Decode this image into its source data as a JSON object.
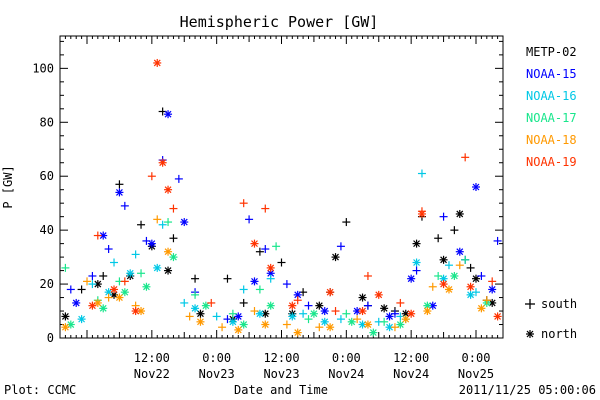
{
  "chart_data": {
    "type": "scatter",
    "title": "Hemispheric Power [GW]",
    "xlabel": "Date and Time",
    "ylabel": "P [GW]",
    "xlim": [
      "2011-11-21 19:00",
      "2011-11-25 05:00"
    ],
    "ylim": [
      0,
      112
    ],
    "yticks": [
      0,
      20,
      40,
      60,
      80,
      100
    ],
    "xticks": [
      {
        "time": "2011-11-22 12:00",
        "label1": "12:00",
        "label2": "Nov22"
      },
      {
        "time": "2011-11-23 00:00",
        "label1": "0:00",
        "label2": "Nov23"
      },
      {
        "time": "2011-11-23 12:00",
        "label1": "12:00",
        "label2": "Nov23"
      },
      {
        "time": "2011-11-24 00:00",
        "label1": "0:00",
        "label2": "Nov24"
      },
      {
        "time": "2011-11-24 12:00",
        "label1": "12:00",
        "label2": "Nov24"
      },
      {
        "time": "2011-11-25 00:00",
        "label1": "0:00",
        "label2": "Nov25"
      }
    ],
    "grid": false,
    "legend_position": "right",
    "marker_legend": [
      {
        "symbol": "+",
        "label": "south"
      },
      {
        "symbol": "*",
        "label": "north"
      }
    ],
    "series": [
      {
        "name": "METP-02",
        "color": "#000000",
        "south": [
          [
            "2011-11-21 23:00",
            18
          ],
          [
            "2011-11-22 03:00",
            23
          ],
          [
            "2011-11-22 06:00",
            57
          ],
          [
            "2011-11-22 10:00",
            42
          ],
          [
            "2011-11-22 14:00",
            84
          ],
          [
            "2011-11-22 16:00",
            37
          ],
          [
            "2011-11-22 20:00",
            22
          ],
          [
            "2011-11-23 02:00",
            22
          ],
          [
            "2011-11-23 05:00",
            13
          ],
          [
            "2011-11-23 08:00",
            32
          ],
          [
            "2011-11-23 12:00",
            28
          ],
          [
            "2011-11-23 16:00",
            17
          ],
          [
            "2011-11-23 21:00",
            17
          ],
          [
            "2011-11-24 00:00",
            43
          ],
          [
            "2011-11-24 04:00",
            12
          ],
          [
            "2011-11-24 09:00",
            10
          ],
          [
            "2011-11-24 14:00",
            45
          ],
          [
            "2011-11-24 17:00",
            37
          ],
          [
            "2011-11-24 20:00",
            40
          ],
          [
            "2011-11-24 23:00",
            26
          ],
          [
            "2011-11-25 02:00",
            14
          ]
        ],
        "north": [
          [
            "2011-11-21 20:00",
            8
          ],
          [
            "2011-11-22 02:00",
            20
          ],
          [
            "2011-11-22 05:00",
            16
          ],
          [
            "2011-11-22 08:00",
            23
          ],
          [
            "2011-11-22 12:00",
            34
          ],
          [
            "2011-11-22 15:00",
            25
          ],
          [
            "2011-11-22 21:00",
            9
          ],
          [
            "2011-11-23 03:00",
            7
          ],
          [
            "2011-11-23 09:00",
            9
          ],
          [
            "2011-11-23 14:00",
            9
          ],
          [
            "2011-11-23 19:00",
            12
          ],
          [
            "2011-11-23 22:00",
            30
          ],
          [
            "2011-11-24 03:00",
            15
          ],
          [
            "2011-11-24 07:00",
            11
          ],
          [
            "2011-11-24 11:00",
            9
          ],
          [
            "2011-11-24 13:00",
            35
          ],
          [
            "2011-11-24 18:00",
            29
          ],
          [
            "2011-11-24 21:00",
            46
          ],
          [
            "2011-11-25 00:00",
            22
          ],
          [
            "2011-11-25 03:00",
            13
          ]
        ]
      },
      {
        "name": "NOAA-15",
        "color": "#0000ff",
        "south": [
          [
            "2011-11-21 21:00",
            18
          ],
          [
            "2011-11-22 01:00",
            23
          ],
          [
            "2011-11-22 04:00",
            33
          ],
          [
            "2011-11-22 07:00",
            49
          ],
          [
            "2011-11-22 11:00",
            36
          ],
          [
            "2011-11-22 14:00",
            66
          ],
          [
            "2011-11-22 17:00",
            59
          ],
          [
            "2011-11-22 20:00",
            17
          ],
          [
            "2011-11-23 02:00",
            7
          ],
          [
            "2011-11-23 06:00",
            44
          ],
          [
            "2011-11-23 09:00",
            33
          ],
          [
            "2011-11-23 13:00",
            20
          ],
          [
            "2011-11-23 17:00",
            12
          ],
          [
            "2011-11-23 23:00",
            34
          ],
          [
            "2011-11-24 04:00",
            12
          ],
          [
            "2011-11-24 09:00",
            9
          ],
          [
            "2011-11-24 13:00",
            25
          ],
          [
            "2011-11-24 18:00",
            45
          ],
          [
            "2011-11-24 22:00",
            29
          ],
          [
            "2011-11-25 01:00",
            23
          ],
          [
            "2011-11-25 04:00",
            36
          ]
        ],
        "north": [
          [
            "2011-11-21 22:00",
            13
          ],
          [
            "2011-11-22 03:00",
            38
          ],
          [
            "2011-11-22 06:00",
            54
          ],
          [
            "2011-11-22 12:00",
            35
          ],
          [
            "2011-11-22 15:00",
            83
          ],
          [
            "2011-11-22 18:00",
            43
          ],
          [
            "2011-11-23 04:00",
            8
          ],
          [
            "2011-11-23 07:00",
            21
          ],
          [
            "2011-11-23 10:00",
            24
          ],
          [
            "2011-11-23 15:00",
            16
          ],
          [
            "2011-11-23 20:00",
            10
          ],
          [
            "2011-11-24 02:00",
            10
          ],
          [
            "2011-11-24 08:00",
            8
          ],
          [
            "2011-11-24 12:00",
            22
          ],
          [
            "2011-11-24 16:00",
            12
          ],
          [
            "2011-11-24 21:00",
            32
          ],
          [
            "2011-11-25 00:00",
            56
          ],
          [
            "2011-11-25 03:00",
            18
          ]
        ]
      },
      {
        "name": "NOAA-16",
        "color": "#00c8e6",
        "south": [
          [
            "2011-11-22 01:00",
            20
          ],
          [
            "2011-11-22 05:00",
            28
          ],
          [
            "2011-11-22 09:00",
            31
          ],
          [
            "2011-11-22 14:00",
            42
          ],
          [
            "2011-11-22 18:00",
            13
          ],
          [
            "2011-11-23 00:00",
            8
          ],
          [
            "2011-11-23 05:00",
            18
          ],
          [
            "2011-11-23 10:00",
            22
          ],
          [
            "2011-11-23 16:00",
            9
          ],
          [
            "2011-11-23 23:00",
            7
          ],
          [
            "2011-11-24 06:00",
            6
          ],
          [
            "2011-11-24 10:00",
            8
          ],
          [
            "2011-11-24 14:00",
            61
          ],
          [
            "2011-11-24 19:00",
            27
          ],
          [
            "2011-11-25 00:00",
            17
          ]
        ],
        "north": [
          [
            "2011-11-21 23:00",
            7
          ],
          [
            "2011-11-22 04:00",
            17
          ],
          [
            "2011-11-22 08:00",
            24
          ],
          [
            "2011-11-22 13:00",
            26
          ],
          [
            "2011-11-22 20:00",
            11
          ],
          [
            "2011-11-23 03:00",
            6
          ],
          [
            "2011-11-23 08:00",
            9
          ],
          [
            "2011-11-23 14:00",
            8
          ],
          [
            "2011-11-23 20:00",
            6
          ],
          [
            "2011-11-24 03:00",
            5
          ],
          [
            "2011-11-24 08:00",
            4
          ],
          [
            "2011-11-24 13:00",
            28
          ],
          [
            "2011-11-24 18:00",
            22
          ],
          [
            "2011-11-24 23:00",
            16
          ]
        ]
      },
      {
        "name": "NOAA-17",
        "color": "#19e68c",
        "south": [
          [
            "2011-11-21 20:00",
            26
          ],
          [
            "2011-11-22 02:00",
            14
          ],
          [
            "2011-11-22 06:00",
            21
          ],
          [
            "2011-11-22 10:00",
            24
          ],
          [
            "2011-11-22 15:00",
            43
          ],
          [
            "2011-11-22 20:00",
            16
          ],
          [
            "2011-11-23 03:00",
            9
          ],
          [
            "2011-11-23 08:00",
            18
          ],
          [
            "2011-11-23 11:00",
            34
          ],
          [
            "2011-11-23 17:00",
            7
          ],
          [
            "2011-11-24 00:00",
            9
          ],
          [
            "2011-11-24 07:00",
            6
          ],
          [
            "2011-11-24 11:00",
            7
          ],
          [
            "2011-11-24 17:00",
            23
          ],
          [
            "2011-11-24 22:00",
            29
          ]
        ],
        "north": [
          [
            "2011-11-21 21:00",
            5
          ],
          [
            "2011-11-22 03:00",
            11
          ],
          [
            "2011-11-22 07:00",
            17
          ],
          [
            "2011-11-22 11:00",
            19
          ],
          [
            "2011-11-22 16:00",
            30
          ],
          [
            "2011-11-22 22:00",
            12
          ],
          [
            "2011-11-23 05:00",
            5
          ],
          [
            "2011-11-23 10:00",
            12
          ],
          [
            "2011-11-23 18:00",
            9
          ],
          [
            "2011-11-24 01:00",
            6
          ],
          [
            "2011-11-24 05:00",
            2
          ],
          [
            "2011-11-24 10:00",
            5
          ],
          [
            "2011-11-24 15:00",
            12
          ],
          [
            "2011-11-24 20:00",
            23
          ],
          [
            "2011-11-25 02:00",
            13
          ]
        ]
      },
      {
        "name": "NOAA-18",
        "color": "#ff9900",
        "south": [
          [
            "2011-11-22 00:00",
            21
          ],
          [
            "2011-11-22 04:00",
            15
          ],
          [
            "2011-11-22 09:00",
            12
          ],
          [
            "2011-11-22 13:00",
            44
          ],
          [
            "2011-11-22 19:00",
            8
          ],
          [
            "2011-11-23 01:00",
            4
          ],
          [
            "2011-11-23 07:00",
            10
          ],
          [
            "2011-11-23 13:00",
            5
          ],
          [
            "2011-11-23 19:00",
            4
          ],
          [
            "2011-11-24 02:00",
            7
          ],
          [
            "2011-11-24 09:00",
            4
          ],
          [
            "2011-11-24 16:00",
            19
          ],
          [
            "2011-11-24 21:00",
            27
          ],
          [
            "2011-11-25 02:00",
            14
          ]
        ],
        "north": [
          [
            "2011-11-21 20:00",
            4
          ],
          [
            "2011-11-22 02:00",
            13
          ],
          [
            "2011-11-22 06:00",
            15
          ],
          [
            "2011-11-22 10:00",
            10
          ],
          [
            "2011-11-22 15:00",
            32
          ],
          [
            "2011-11-22 21:00",
            6
          ],
          [
            "2011-11-23 04:00",
            3
          ],
          [
            "2011-11-23 09:00",
            5
          ],
          [
            "2011-11-23 15:00",
            2
          ],
          [
            "2011-11-23 21:00",
            4
          ],
          [
            "2011-11-24 04:00",
            5
          ],
          [
            "2011-11-24 11:00",
            7
          ],
          [
            "2011-11-24 15:00",
            10
          ],
          [
            "2011-11-24 19:00",
            18
          ],
          [
            "2011-11-25 01:00",
            11
          ]
        ]
      },
      {
        "name": "NOAA-19",
        "color": "#ff3300",
        "south": [
          [
            "2011-11-22 02:00",
            38
          ],
          [
            "2011-11-22 07:00",
            21
          ],
          [
            "2011-11-22 12:00",
            60
          ],
          [
            "2011-11-22 16:00",
            48
          ],
          [
            "2011-11-22 23:00",
            13
          ],
          [
            "2011-11-23 05:00",
            50
          ],
          [
            "2011-11-23 09:00",
            48
          ],
          [
            "2011-11-23 15:00",
            14
          ],
          [
            "2011-11-23 22:00",
            10
          ],
          [
            "2011-11-24 04:00",
            23
          ],
          [
            "2011-11-24 10:00",
            13
          ],
          [
            "2011-11-24 14:00",
            47
          ],
          [
            "2011-11-24 22:00",
            67
          ],
          [
            "2011-11-25 03:00",
            21
          ]
        ],
        "north": [
          [
            "2011-11-22 01:00",
            12
          ],
          [
            "2011-11-22 05:00",
            18
          ],
          [
            "2011-11-22 09:00",
            10
          ],
          [
            "2011-11-22 13:00",
            102
          ],
          [
            "2011-11-22 14:00",
            65
          ],
          [
            "2011-11-22 15:00",
            55
          ],
          [
            "2011-11-23 07:00",
            35
          ],
          [
            "2011-11-23 10:00",
            26
          ],
          [
            "2011-11-23 14:00",
            12
          ],
          [
            "2011-11-23 21:00",
            17
          ],
          [
            "2011-11-24 03:00",
            10
          ],
          [
            "2011-11-24 06:00",
            16
          ],
          [
            "2011-11-24 12:00",
            9
          ],
          [
            "2011-11-24 14:00",
            46
          ],
          [
            "2011-11-24 18:00",
            20
          ],
          [
            "2011-11-24 23:00",
            19
          ],
          [
            "2011-11-25 04:00",
            8
          ]
        ]
      }
    ]
  },
  "footer": {
    "left": "Plot: CCMC",
    "right": "2011/11/25 05:00:06"
  }
}
